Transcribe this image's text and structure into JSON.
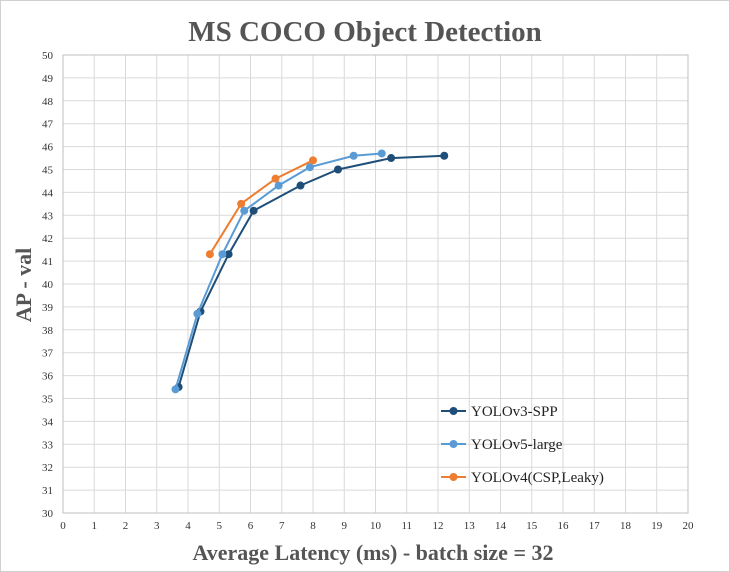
{
  "chart_data": {
    "type": "line",
    "title": "MS COCO Object Detection",
    "xlabel": "Average Latency (ms) - batch size = 32",
    "ylabel": "AP - val",
    "xlim": [
      0,
      20
    ],
    "ylim": [
      30,
      50
    ],
    "x_ticks": [
      0,
      1,
      2,
      3,
      4,
      5,
      6,
      7,
      8,
      9,
      10,
      11,
      12,
      13,
      14,
      15,
      16,
      17,
      18,
      19,
      20
    ],
    "y_ticks": [
      30,
      31,
      32,
      33,
      34,
      35,
      36,
      37,
      38,
      39,
      40,
      41,
      42,
      43,
      44,
      45,
      46,
      47,
      48,
      49,
      50
    ],
    "grid": true,
    "legend_position": "bottom-right",
    "series": [
      {
        "name": "YOLOv3-SPP",
        "color": "#1f4e79",
        "x": [
          3.7,
          4.4,
          5.3,
          6.1,
          7.6,
          8.8,
          10.5,
          12.2
        ],
        "y": [
          35.5,
          38.8,
          41.3,
          43.2,
          44.3,
          45.0,
          45.5,
          45.6
        ]
      },
      {
        "name": "YOLOv5-large",
        "color": "#5b9bd5",
        "x": [
          3.6,
          4.3,
          5.1,
          5.8,
          6.9,
          7.9,
          9.3,
          10.2
        ],
        "y": [
          35.4,
          38.7,
          41.3,
          43.2,
          44.3,
          45.1,
          45.6,
          45.7
        ]
      },
      {
        "name": "YOLOv4(CSP,Leaky)",
        "color": "#ed7d31",
        "x": [
          4.7,
          5.7,
          6.8,
          8.0
        ],
        "y": [
          41.3,
          43.5,
          44.6,
          45.4
        ]
      }
    ]
  }
}
